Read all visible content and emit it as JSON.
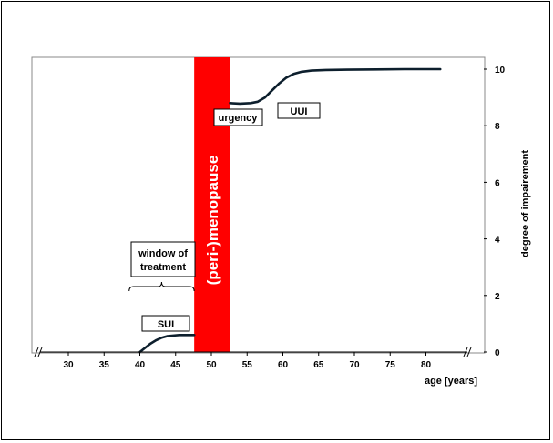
{
  "chart_data": {
    "type": "line",
    "xlabel": "age [years]",
    "ylabel": "degree of impairement",
    "xlim": [
      25,
      86
    ],
    "ylim": [
      0,
      10.4
    ],
    "x_ticks": [
      30,
      35,
      40,
      45,
      50,
      55,
      60,
      65,
      70,
      75,
      80
    ],
    "y_ticks": [
      0,
      2,
      4,
      6,
      8,
      10
    ],
    "axis_break": true,
    "grid": false,
    "colors": {
      "curve": "#0d1f2d",
      "menopause_band": "#ff0000",
      "band_text": "#ffffff"
    },
    "series": [
      {
        "segment": "sui",
        "x": [
          40.0,
          40.8,
          41.5,
          42.3,
          43.0,
          43.8,
          44.5,
          45.5,
          46.5,
          47.6
        ],
        "y": [
          0.0,
          0.16,
          0.3,
          0.42,
          0.5,
          0.56,
          0.58,
          0.6,
          0.6,
          0.6
        ]
      },
      {
        "segment": "uui",
        "x": [
          52.6,
          54.0,
          55.5,
          56.5,
          57.5,
          58.5,
          59.5,
          60.5,
          61.5,
          62.5,
          64.0,
          66.0,
          69.0,
          73.0,
          77.0,
          80.0,
          82.0
        ],
        "y": [
          8.8,
          8.78,
          8.8,
          8.85,
          9.0,
          9.25,
          9.5,
          9.7,
          9.83,
          9.9,
          9.95,
          9.97,
          9.98,
          9.99,
          10.0,
          10.0,
          10.0
        ]
      }
    ],
    "menopause_band": {
      "x_start": 47.6,
      "x_end": 52.6,
      "label": "(peri-)menopause"
    },
    "annotations": {
      "sui": "SUI",
      "urgency": "urgency",
      "uui": "UUI",
      "window_line1": "window of",
      "window_line2": "treatment",
      "window_range": [
        38.5,
        47.6
      ]
    }
  }
}
